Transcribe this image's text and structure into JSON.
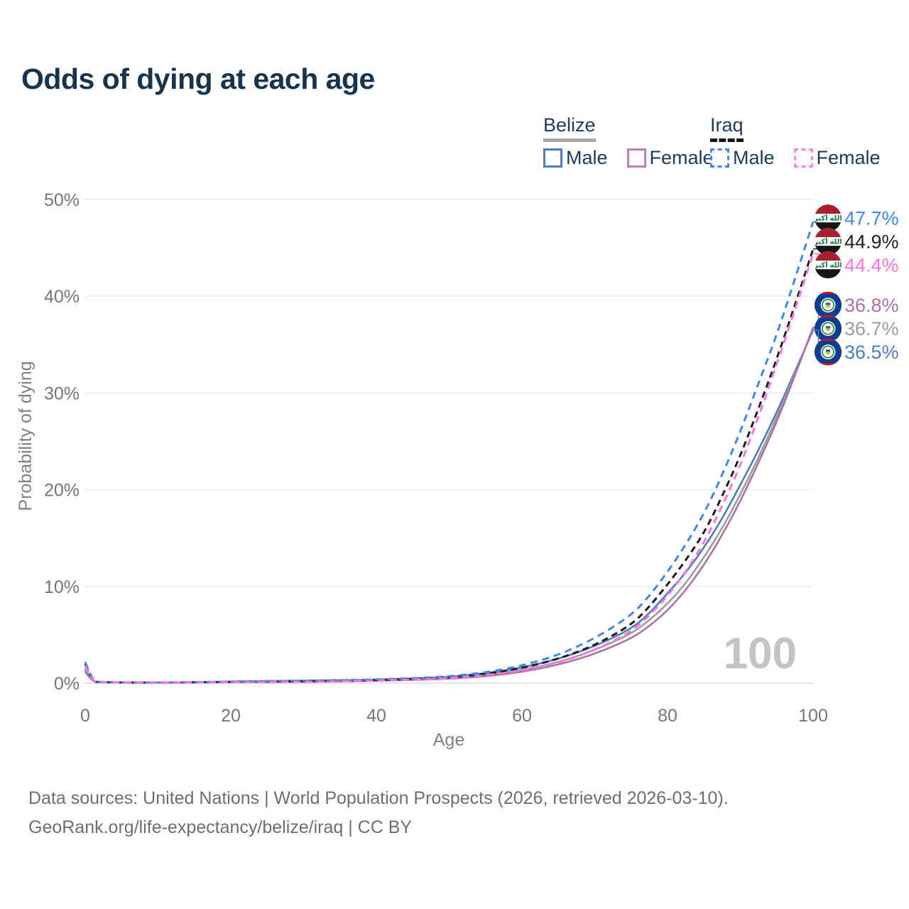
{
  "title": "Odds of dying at each age",
  "legend": {
    "groups": [
      {
        "id": "belize",
        "label": "Belize",
        "line_style": "solid",
        "underline_color": "#a8a8a8",
        "items": [
          {
            "label": "Male",
            "color": "#4e7cbe",
            "dash": false
          },
          {
            "label": "Female",
            "color": "#bd80bb",
            "dash": false
          }
        ]
      },
      {
        "id": "iraq",
        "label": "Iraq",
        "line_style": "dashed",
        "underline_color": "#161616",
        "items": [
          {
            "label": "Male",
            "color": "#4286f0",
            "dash": true
          },
          {
            "label": "Female",
            "color": "#ff86df",
            "dash": true
          }
        ]
      }
    ]
  },
  "chart_data": {
    "type": "line",
    "title": "Odds of dying at each age",
    "xlabel": "Age",
    "ylabel": "Probability of dying",
    "xlim": [
      0,
      100
    ],
    "ylim_percent": [
      0,
      50
    ],
    "grid": "horizontal",
    "legend_position": "top-right",
    "watermark": "100",
    "x_ticks": [
      0,
      20,
      40,
      60,
      80,
      100
    ],
    "y_ticks": [
      "0%",
      "10%",
      "20%",
      "30%",
      "40%",
      "50%"
    ],
    "series": [
      {
        "id": "belize_male",
        "country": "Belize",
        "sex": "Male",
        "flag": "belize",
        "color": "#4e7cbe",
        "dash": null,
        "end_label": "36.5%",
        "end_value": 36.5,
        "points": [
          [
            0,
            1.5
          ],
          [
            1,
            0.15
          ],
          [
            2,
            0.1
          ],
          [
            5,
            0.07
          ],
          [
            10,
            0.06
          ],
          [
            15,
            0.1
          ],
          [
            20,
            0.17
          ],
          [
            25,
            0.22
          ],
          [
            30,
            0.26
          ],
          [
            35,
            0.3
          ],
          [
            40,
            0.36
          ],
          [
            45,
            0.47
          ],
          [
            50,
            0.65
          ],
          [
            55,
            1.0
          ],
          [
            60,
            1.6
          ],
          [
            65,
            2.5
          ],
          [
            70,
            3.8
          ],
          [
            75,
            5.6
          ],
          [
            77.5,
            7.2
          ],
          [
            80,
            9.3
          ],
          [
            82.5,
            11.4
          ],
          [
            85,
            14.0
          ],
          [
            87.5,
            17.0
          ],
          [
            90,
            20.5
          ],
          [
            92.5,
            24.1
          ],
          [
            95,
            28.0
          ],
          [
            97.5,
            32.2
          ],
          [
            100,
            36.5
          ]
        ]
      },
      {
        "id": "belize_total",
        "country": "Belize",
        "sex": "Both",
        "flag": "belize",
        "color": "#9c9c9c",
        "dash": null,
        "end_label": "36.7%",
        "end_value": 36.7,
        "points": [
          [
            0,
            1.35
          ],
          [
            1,
            0.14
          ],
          [
            2,
            0.09
          ],
          [
            5,
            0.06
          ],
          [
            10,
            0.05
          ],
          [
            15,
            0.08
          ],
          [
            20,
            0.13
          ],
          [
            25,
            0.17
          ],
          [
            30,
            0.2
          ],
          [
            35,
            0.24
          ],
          [
            40,
            0.3
          ],
          [
            45,
            0.4
          ],
          [
            50,
            0.55
          ],
          [
            55,
            0.85
          ],
          [
            60,
            1.35
          ],
          [
            65,
            2.15
          ],
          [
            70,
            3.4
          ],
          [
            75,
            5.1
          ],
          [
            77.5,
            6.5
          ],
          [
            80,
            8.2
          ],
          [
            82.5,
            10.3
          ],
          [
            85,
            13.0
          ],
          [
            87.5,
            16.0
          ],
          [
            90,
            19.5
          ],
          [
            92.5,
            23.3
          ],
          [
            95,
            27.5
          ],
          [
            97.5,
            32.0
          ],
          [
            100,
            36.7
          ]
        ]
      },
      {
        "id": "belize_female",
        "country": "Belize",
        "sex": "Female",
        "flag": "belize",
        "color": "#ab72a6",
        "dash": null,
        "end_label": "36.8%",
        "end_value": 36.8,
        "points": [
          [
            0,
            1.2
          ],
          [
            1,
            0.12
          ],
          [
            2,
            0.08
          ],
          [
            5,
            0.05
          ],
          [
            10,
            0.045
          ],
          [
            15,
            0.06
          ],
          [
            20,
            0.09
          ],
          [
            25,
            0.11
          ],
          [
            30,
            0.14
          ],
          [
            35,
            0.18
          ],
          [
            40,
            0.24
          ],
          [
            45,
            0.33
          ],
          [
            50,
            0.45
          ],
          [
            55,
            0.7
          ],
          [
            60,
            1.15
          ],
          [
            65,
            1.9
          ],
          [
            70,
            3.0
          ],
          [
            75,
            4.6
          ],
          [
            77.5,
            5.9
          ],
          [
            80,
            7.5
          ],
          [
            82.5,
            9.6
          ],
          [
            85,
            12.2
          ],
          [
            87.5,
            15.3
          ],
          [
            90,
            18.8
          ],
          [
            92.5,
            22.8
          ],
          [
            95,
            27.0
          ],
          [
            97.5,
            31.8
          ],
          [
            100,
            36.8
          ]
        ]
      },
      {
        "id": "iraq_total",
        "country": "Iraq",
        "sex": "Both",
        "flag": "iraq",
        "color": "#1f1f1f",
        "dash": "9 6",
        "end_label": "44.9%",
        "end_value": 44.9,
        "points": [
          [
            0,
            2.0
          ],
          [
            1,
            0.18
          ],
          [
            2,
            0.11
          ],
          [
            5,
            0.07
          ],
          [
            10,
            0.06
          ],
          [
            15,
            0.09
          ],
          [
            20,
            0.13
          ],
          [
            25,
            0.16
          ],
          [
            30,
            0.2
          ],
          [
            35,
            0.25
          ],
          [
            40,
            0.32
          ],
          [
            45,
            0.43
          ],
          [
            50,
            0.6
          ],
          [
            55,
            0.95
          ],
          [
            60,
            1.55
          ],
          [
            65,
            2.5
          ],
          [
            70,
            3.9
          ],
          [
            75,
            6.0
          ],
          [
            77.5,
            7.9
          ],
          [
            80,
            10.2
          ],
          [
            82.5,
            12.7
          ],
          [
            85,
            15.5
          ],
          [
            87.5,
            19.3
          ],
          [
            90,
            23.5
          ],
          [
            92.5,
            28.4
          ],
          [
            95,
            33.5
          ],
          [
            97.5,
            39.1
          ],
          [
            100,
            44.9
          ]
        ]
      },
      {
        "id": "iraq_male",
        "country": "Iraq",
        "sex": "Male",
        "flag": "iraq",
        "color": "#4286f0",
        "dash": "10 7",
        "end_label": "47.7%",
        "end_value": 47.7,
        "points": [
          [
            0,
            2.2
          ],
          [
            1,
            0.2
          ],
          [
            2,
            0.12
          ],
          [
            5,
            0.08
          ],
          [
            10,
            0.07
          ],
          [
            15,
            0.1
          ],
          [
            20,
            0.16
          ],
          [
            25,
            0.2
          ],
          [
            30,
            0.24
          ],
          [
            35,
            0.3
          ],
          [
            40,
            0.38
          ],
          [
            45,
            0.5
          ],
          [
            50,
            0.7
          ],
          [
            55,
            1.1
          ],
          [
            60,
            1.8
          ],
          [
            65,
            2.9
          ],
          [
            70,
            4.6
          ],
          [
            75,
            7.0
          ],
          [
            77.5,
            9.0
          ],
          [
            80,
            11.5
          ],
          [
            82.5,
            14.3
          ],
          [
            85,
            17.5
          ],
          [
            87.5,
            21.5
          ],
          [
            90,
            26.0
          ],
          [
            92.5,
            31.0
          ],
          [
            95,
            36.0
          ],
          [
            97.5,
            41.8
          ],
          [
            100,
            47.7
          ]
        ]
      },
      {
        "id": "iraq_female",
        "country": "Iraq",
        "sex": "Female",
        "flag": "iraq",
        "color": "#ff74dc",
        "dash": "10 7",
        "end_label": "44.4%",
        "end_value": 44.4,
        "points": [
          [
            0,
            1.8
          ],
          [
            1,
            0.16
          ],
          [
            2,
            0.1
          ],
          [
            5,
            0.06
          ],
          [
            10,
            0.05
          ],
          [
            15,
            0.07
          ],
          [
            20,
            0.1
          ],
          [
            25,
            0.12
          ],
          [
            30,
            0.15
          ],
          [
            35,
            0.2
          ],
          [
            40,
            0.27
          ],
          [
            45,
            0.37
          ],
          [
            50,
            0.5
          ],
          [
            55,
            0.8
          ],
          [
            60,
            1.3
          ],
          [
            65,
            2.1
          ],
          [
            70,
            3.4
          ],
          [
            75,
            5.3
          ],
          [
            77.5,
            7.0
          ],
          [
            80,
            9.0
          ],
          [
            82.5,
            11.5
          ],
          [
            85,
            14.5
          ],
          [
            87.5,
            18.3
          ],
          [
            90,
            22.5
          ],
          [
            92.5,
            27.5
          ],
          [
            95,
            33.0
          ],
          [
            97.5,
            38.6
          ],
          [
            100,
            44.4
          ]
        ]
      }
    ]
  },
  "source": {
    "line1": "Data sources: United Nations | World Population Prospects (2026, retrieved 2026-03-10).",
    "line2": "GeoRank.org/life-expectancy/belize/iraq | CC BY"
  }
}
